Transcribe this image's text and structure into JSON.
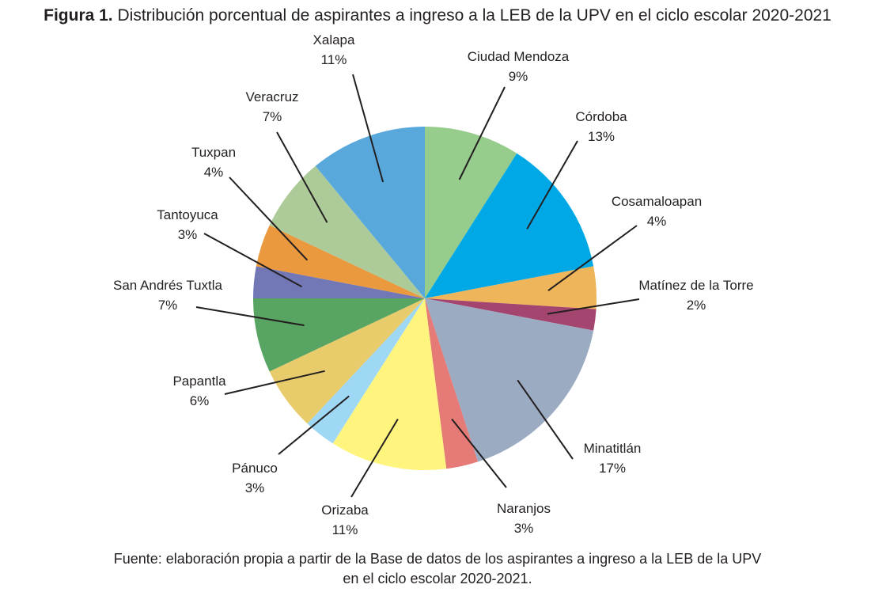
{
  "title": {
    "lead": "Figura 1.",
    "text": "Distribución porcentual de aspirantes a ingreso a la LEB de la UPV en el ciclo escolar 2020-2021"
  },
  "source": {
    "line1": "Fuente: elaboración propia a partir de la Base de datos de los aspirantes a ingreso a la LEB de la UPV",
    "line2": "en el ciclo escolar 2020-2021."
  },
  "chart_data": {
    "type": "pie",
    "title": "Distribución porcentual de aspirantes a ingreso a la LEB de la UPV en el ciclo escolar 2020-2021",
    "unit": "%",
    "start": "12 o'clock",
    "direction": "clockwise",
    "slices": [
      {
        "label": "Ciudad Mendoza",
        "value": 9,
        "value_label": "9%",
        "color": "#96cc8c"
      },
      {
        "label": "Córdoba",
        "value": 13,
        "value_label": "13%",
        "color": "#00a9e6"
      },
      {
        "label": "Cosamaloapan",
        "value": 4,
        "value_label": "4%",
        "color": "#efb55a"
      },
      {
        "label": "Matínez de la Torre",
        "value": 2,
        "value_label": "2%",
        "color": "#a3456f"
      },
      {
        "label": "Minatitlán",
        "value": 17,
        "value_label": "17%",
        "color": "#9aabc2"
      },
      {
        "label": "Naranjos",
        "value": 3,
        "value_label": "3%",
        "color": "#e57a76"
      },
      {
        "label": "Orizaba",
        "value": 11,
        "value_label": "11%",
        "color": "#fff47d"
      },
      {
        "label": "Pánuco",
        "value": 3,
        "value_label": "3%",
        "color": "#9fd8f4"
      },
      {
        "label": "Papantla",
        "value": 6,
        "value_label": "6%",
        "color": "#e8cb6a"
      },
      {
        "label": "San Andrés Tuxtla",
        "value": 7,
        "value_label": "7%",
        "color": "#58a463"
      },
      {
        "label": "Tantoyuca",
        "value": 3,
        "value_label": "3%",
        "color": "#7278b6"
      },
      {
        "label": "Tuxpan",
        "value": 4,
        "value_label": "4%",
        "color": "#ea993e"
      },
      {
        "label": "Veracruz",
        "value": 7,
        "value_label": "7%",
        "color": "#adca99"
      },
      {
        "label": "Xalapa",
        "value": 11,
        "value_label": "11%",
        "color": "#58a8dc"
      }
    ]
  }
}
